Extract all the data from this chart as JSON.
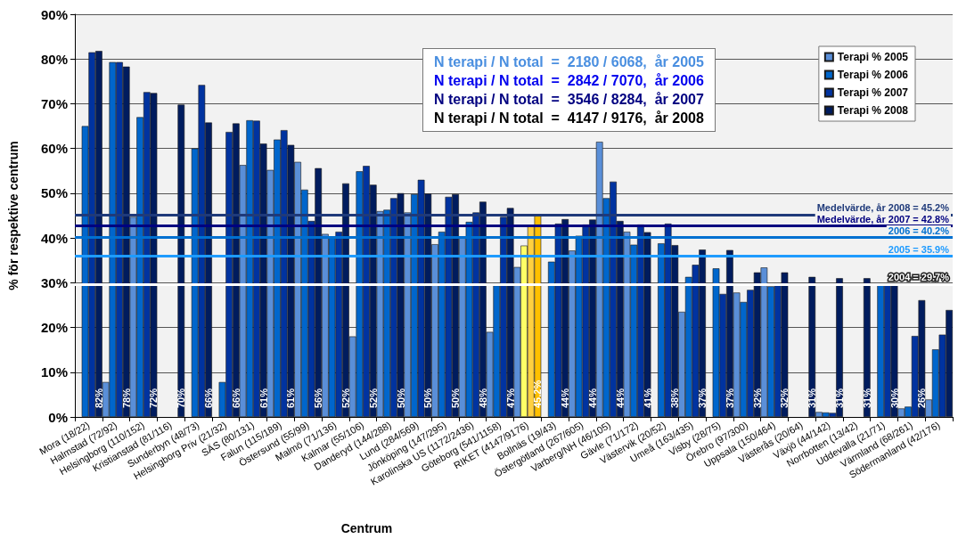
{
  "chart_data": {
    "type": "bar",
    "xlabel": "Centrum",
    "ylabel": "% för respektive centrum",
    "annotations": [
      "N terapi / N total  =  2180 / 6068,  år 2005",
      "N terapi / N total  =  2842 / 7070,  år 2006",
      "N terapi / N total  =  3546 / 8284,  år 2007",
      "N terapi / N total  =  4147 / 9176,  år 2008"
    ],
    "categories": [
      "Mora (18/22)",
      "Halmstad (72/92)",
      "Helsingborg (110/152)",
      "Kristianstad (81/116)",
      "Sunderbyn (48/73)",
      "Helsingborg Priv (21/32)",
      "SÄS (80/131)",
      "Falun (115/189)",
      "Östersund (55/99)",
      "Malmö (71/136)",
      "Kalmar (55/106)",
      "Danderyd (144/288)",
      "Lund (284/569)",
      "Jönköping (147/295)",
      "Karolinska US (1172/2436)",
      "Göteborg (541/1158)",
      "RIKET (4147/9176)",
      "Bollnäs (19/43)",
      "Östergötland (267/605)",
      "Varberg/NH (46/105)",
      "Gävle (71/172)",
      "Västervik (20/52)",
      "Umeå (163/435)",
      "Visby (28/75)",
      "Örebro (97/300)",
      "Uppsala (150/464)",
      "Västerås (20/64)",
      "Växjö (44/142)",
      "Norrbotten (13/42)",
      "Uddevalla (21/71)",
      "Värmland (68/261)",
      "Södermanland (42/176)"
    ],
    "series": [
      {
        "name": "Terapi % 2005",
        "color": "#5a8fd8",
        "values": [
          null,
          7.8,
          44.7,
          null,
          null,
          null,
          56.3,
          55.2,
          57.0,
          40.9,
          18.0,
          46.0,
          45.7,
          38.6,
          40.0,
          19.0,
          33.5,
          null,
          37.2,
          61.5,
          41.4,
          null,
          23.5,
          null,
          27.8,
          33.4,
          null,
          1.1,
          null,
          null,
          1.9,
          3.9
        ]
      },
      {
        "name": "Terapi % 2006",
        "color": "#0066cc",
        "values": [
          65.0,
          79.3,
          67.0,
          null,
          60.0,
          7.8,
          66.3,
          62.0,
          50.8,
          40.2,
          54.9,
          46.3,
          49.8,
          41.4,
          43.6,
          29.4,
          38.3,
          34.7,
          40.5,
          48.9,
          38.5,
          38.8,
          31.3,
          33.2,
          25.7,
          29.2,
          null,
          1.0,
          null,
          29.5,
          2.3,
          15.1
        ],
        "colors": [
          "#0066cc",
          "#0066cc",
          "#0066cc",
          "#0066cc",
          "#0066cc",
          "#0066cc",
          "#0066cc",
          "#0066cc",
          "#0066cc",
          "#0066cc",
          "#0066cc",
          "#0066cc",
          "#0066cc",
          "#0066cc",
          "#0066cc",
          "#0066cc",
          "#ffff66",
          "#0066cc",
          "#0066cc",
          "#0066cc",
          "#0066cc",
          "#0066cc",
          "#0066cc",
          "#0066cc",
          "#0066cc",
          "#0066cc",
          "#0066cc",
          "#0066cc",
          "#0066cc",
          "#0066cc",
          "#0066cc",
          "#0066cc"
        ]
      },
      {
        "name": "Terapi % 2007",
        "color": "#0033a0",
        "values": [
          81.5,
          79.3,
          72.6,
          null,
          74.2,
          63.7,
          66.2,
          64.1,
          43.8,
          41.4,
          56.1,
          48.9,
          53.0,
          49.2,
          45.7,
          44.7,
          42.8,
          43.2,
          43.0,
          52.6,
          43.0,
          43.2,
          34.0,
          27.5,
          28.4,
          29.4,
          null,
          0.9,
          null,
          29.5,
          18.1,
          18.4
        ],
        "colors": [
          "#0033a0",
          "#0033a0",
          "#0033a0",
          "#0033a0",
          "#0033a0",
          "#0033a0",
          "#0033a0",
          "#0033a0",
          "#0033a0",
          "#0033a0",
          "#0033a0",
          "#0033a0",
          "#0033a0",
          "#0033a0",
          "#0033a0",
          "#0033a0",
          "#ffd040",
          "#0033a0",
          "#0033a0",
          "#0033a0",
          "#0033a0",
          "#0033a0",
          "#0033a0",
          "#0033a0",
          "#0033a0",
          "#0033a0",
          "#0033a0",
          "#0033a0",
          "#0033a0",
          "#0033a0",
          "#0033a0",
          "#0033a0"
        ]
      },
      {
        "name": "Terapi % 2008",
        "color": "#001c5e",
        "values": [
          81.8,
          78.3,
          72.4,
          69.8,
          65.8,
          65.6,
          61.1,
          60.8,
          55.6,
          52.2,
          51.9,
          50.0,
          49.9,
          49.8,
          48.1,
          46.7,
          45.2,
          44.2,
          44.1,
          43.8,
          41.3,
          38.4,
          37.4,
          37.3,
          32.3,
          32.3,
          31.3,
          31.0,
          31.0,
          29.6,
          26.1,
          23.9
        ],
        "colors": [
          "#001c5e",
          "#001c5e",
          "#001c5e",
          "#001c5e",
          "#001c5e",
          "#001c5e",
          "#001c5e",
          "#001c5e",
          "#001c5e",
          "#001c5e",
          "#001c5e",
          "#001c5e",
          "#001c5e",
          "#001c5e",
          "#001c5e",
          "#001c5e",
          "#ffc000",
          "#001c5e",
          "#001c5e",
          "#001c5e",
          "#001c5e",
          "#001c5e",
          "#001c5e",
          "#001c5e",
          "#001c5e",
          "#001c5e",
          "#001c5e",
          "#001c5e",
          "#001c5e",
          "#001c5e",
          "#001c5e",
          "#001c5e"
        ],
        "value_labels": [
          "82%",
          "78%",
          "72%",
          "70%",
          "66%",
          "66%",
          "61%",
          "61%",
          "56%",
          "52%",
          "52%",
          "50%",
          "50%",
          "50%",
          "48%",
          "47%",
          "45.2%",
          "44%",
          "44%",
          "44%",
          "41%",
          "38%",
          "37%",
          "37%",
          "32%",
          "32%",
          "31%",
          "31%",
          "31%",
          "30%",
          "26%",
          null
        ]
      }
    ],
    "ylim": [
      0,
      90
    ],
    "yticks": [
      {
        "value": 0,
        "label": "0%"
      },
      {
        "value": 10,
        "label": "10%"
      },
      {
        "value": 20,
        "label": "20%"
      },
      {
        "value": 30,
        "label": "30%"
      },
      {
        "value": 40,
        "label": "40%"
      },
      {
        "value": 50,
        "label": "50%"
      },
      {
        "value": 60,
        "label": "60%"
      },
      {
        "value": 70,
        "label": "70%"
      },
      {
        "value": 80,
        "label": "80%"
      },
      {
        "value": 90,
        "label": "90%"
      }
    ],
    "ref_lines": [
      {
        "axis": "y",
        "value": 45.2,
        "label": "Medelvärde, år 2008 = 45.2%",
        "color": "#1f3a7a"
      },
      {
        "axis": "y",
        "value": 42.8,
        "label": "Medelvärde, år 2007 = 42.8%",
        "color": "#000080"
      },
      {
        "axis": "y",
        "value": 40.2,
        "label": "2006 = 40.2%",
        "color": "#0070d0"
      },
      {
        "axis": "y",
        "value": 35.9,
        "label": "2005 = 35.9%",
        "color": "#1e9bff"
      },
      {
        "axis": "y",
        "value": 29.7,
        "label": "2004 = 29.7%",
        "color": "#ffffff"
      }
    ],
    "grid": "y",
    "legend": "top right"
  }
}
